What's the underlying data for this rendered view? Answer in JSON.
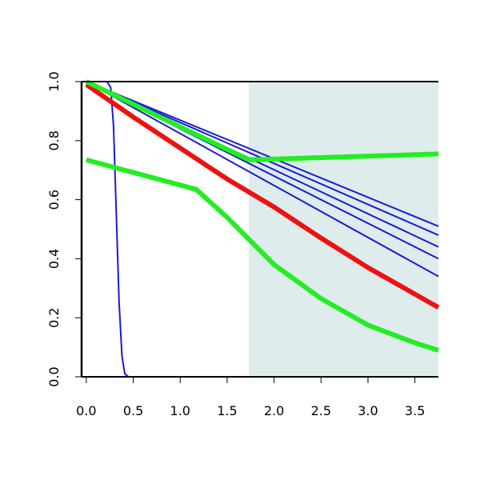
{
  "chart_data": {
    "type": "line",
    "title": "",
    "xlabel": "",
    "ylabel": "",
    "xlim": [
      -0.05,
      3.75
    ],
    "ylim": [
      0.0,
      1.0
    ],
    "x_ticks": [
      0.0,
      0.5,
      1.0,
      1.5,
      2.0,
      2.5,
      3.0,
      3.5
    ],
    "x_tick_labels": [
      "0.0",
      "0.5",
      "1.0",
      "1.5",
      "2.0",
      "2.5",
      "3.0",
      "3.5"
    ],
    "y_ticks": [
      0.0,
      0.2,
      0.4,
      0.6,
      0.8,
      1.0
    ],
    "y_tick_labels": [
      "0.0",
      "0.2",
      "0.4",
      "0.6",
      "0.8",
      "1.0"
    ],
    "grid": false,
    "legend": "none",
    "shaded_region": {
      "x_from": 1.73,
      "x_to": 3.75,
      "color": "#deecec"
    },
    "series": [
      {
        "color": "#1a1ad6",
        "width": "thin",
        "points": [
          [
            0.0,
            1.0
          ],
          [
            0.22,
            1.0
          ],
          [
            0.26,
            0.98
          ],
          [
            0.29,
            0.85
          ],
          [
            0.32,
            0.55
          ],
          [
            0.35,
            0.25
          ],
          [
            0.38,
            0.07
          ],
          [
            0.41,
            0.01
          ],
          [
            0.45,
            0.0
          ],
          [
            3.75,
            0.0
          ]
        ]
      },
      {
        "color": "#1a1ad6",
        "width": "thin",
        "points": [
          [
            0.0,
            1.0
          ],
          [
            3.75,
            0.51
          ]
        ]
      },
      {
        "color": "#1a1ad6",
        "width": "thin",
        "points": [
          [
            0.0,
            1.0
          ],
          [
            3.75,
            0.48
          ]
        ]
      },
      {
        "color": "#1a1ad6",
        "width": "thin",
        "points": [
          [
            0.0,
            1.0
          ],
          [
            3.75,
            0.44
          ]
        ]
      },
      {
        "color": "#1a1ad6",
        "width": "thin",
        "points": [
          [
            0.0,
            1.0
          ],
          [
            3.75,
            0.4
          ]
        ]
      },
      {
        "color": "#1a1ad6",
        "width": "thin",
        "points": [
          [
            0.0,
            1.0
          ],
          [
            3.75,
            0.34
          ]
        ]
      },
      {
        "color": "#ee1111",
        "width": "thick",
        "points": [
          [
            0.0,
            0.99
          ],
          [
            0.5,
            0.88
          ],
          [
            1.0,
            0.775
          ],
          [
            1.5,
            0.67
          ],
          [
            2.0,
            0.575
          ],
          [
            2.5,
            0.47
          ],
          [
            3.0,
            0.37
          ],
          [
            3.5,
            0.28
          ],
          [
            3.75,
            0.235
          ]
        ]
      },
      {
        "color": "#22ee22",
        "width": "thick",
        "points": [
          [
            0.0,
            1.0
          ],
          [
            1.73,
            0.735
          ],
          [
            3.75,
            0.755
          ]
        ]
      },
      {
        "color": "#22ee22",
        "width": "thick",
        "points": [
          [
            0.0,
            0.735
          ],
          [
            1.17,
            0.635
          ],
          [
            1.5,
            0.54
          ],
          [
            2.0,
            0.38
          ],
          [
            2.5,
            0.265
          ],
          [
            3.0,
            0.175
          ],
          [
            3.5,
            0.115
          ],
          [
            3.75,
            0.09
          ]
        ]
      }
    ]
  }
}
